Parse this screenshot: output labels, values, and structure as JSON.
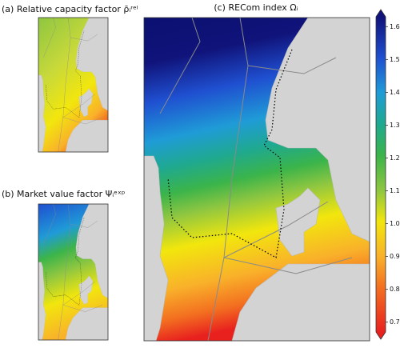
{
  "panels": [
    {
      "title": "(a) Relative capacity factor ρ̄ᵢʳᵉˡ"
    },
    {
      "title": "(b) Market value factor Ψᵢᵉˣᵖ"
    },
    {
      "title": "(c) RECom index Ωᵢ"
    }
  ],
  "colorbar": {
    "range": [
      0.67,
      1.63
    ],
    "ticks": [
      0.7,
      0.8,
      0.9,
      {
        "value": 1,
        "label": "1.0"
      },
      1.1,
      1.2,
      1.3,
      1.4,
      1.5,
      1.6
    ]
  }
}
